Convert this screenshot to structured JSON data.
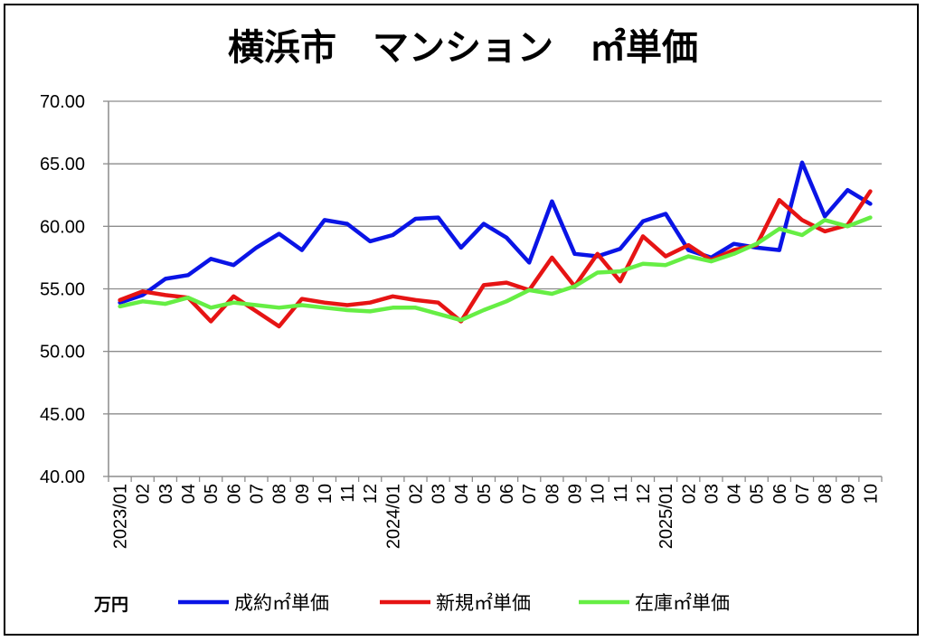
{
  "chart_data": {
    "type": "line",
    "title": "横浜市　マンション　㎡単価",
    "ylabel": "万円",
    "xlabel": "",
    "ylim": [
      40,
      70
    ],
    "yticks": [
      "70.00",
      "65.00",
      "60.00",
      "55.00",
      "50.00",
      "45.00",
      "40.00"
    ],
    "grid": "horizontal",
    "legend_position": "bottom",
    "categories": [
      "2023/01",
      "02",
      "03",
      "04",
      "05",
      "06",
      "07",
      "08",
      "09",
      "10",
      "11",
      "12",
      "2024/01",
      "02",
      "03",
      "04",
      "05",
      "06",
      "07",
      "08",
      "09",
      "10",
      "11",
      "12",
      "2025/01",
      "02",
      "03",
      "04",
      "05",
      "06",
      "07",
      "08",
      "09",
      "10"
    ],
    "series": [
      {
        "name": "成約㎡単価",
        "color": "#0a14e6",
        "values": [
          53.9,
          54.5,
          55.8,
          56.1,
          57.4,
          56.9,
          58.3,
          59.4,
          58.1,
          60.5,
          60.2,
          58.8,
          59.3,
          60.6,
          60.7,
          58.3,
          60.2,
          59.1,
          57.1,
          62.0,
          57.8,
          57.6,
          58.2,
          60.4,
          61.0,
          58.1,
          57.5,
          58.6,
          58.3,
          58.1,
          65.1,
          60.8,
          62.9,
          61.8
        ]
      },
      {
        "name": "新規㎡単価",
        "color": "#e61414",
        "values": [
          54.1,
          54.8,
          54.5,
          54.3,
          52.4,
          54.4,
          53.2,
          52.0,
          54.2,
          53.9,
          53.7,
          53.9,
          54.4,
          54.1,
          53.9,
          52.4,
          55.3,
          55.5,
          54.9,
          57.5,
          55.2,
          57.8,
          55.6,
          59.2,
          57.6,
          58.5,
          57.3,
          58.1,
          58.5,
          62.1,
          60.5,
          59.6,
          60.1,
          62.8
        ]
      },
      {
        "name": "在庫㎡単価",
        "color": "#66ee44",
        "values": [
          53.6,
          54.0,
          53.8,
          54.3,
          53.5,
          53.9,
          53.7,
          53.5,
          53.7,
          53.5,
          53.3,
          53.2,
          53.5,
          53.5,
          53.0,
          52.5,
          53.3,
          54.0,
          54.9,
          54.6,
          55.2,
          56.3,
          56.4,
          57.0,
          56.9,
          57.6,
          57.2,
          57.8,
          58.6,
          59.8,
          59.3,
          60.5,
          60.0,
          60.7
        ]
      }
    ]
  }
}
